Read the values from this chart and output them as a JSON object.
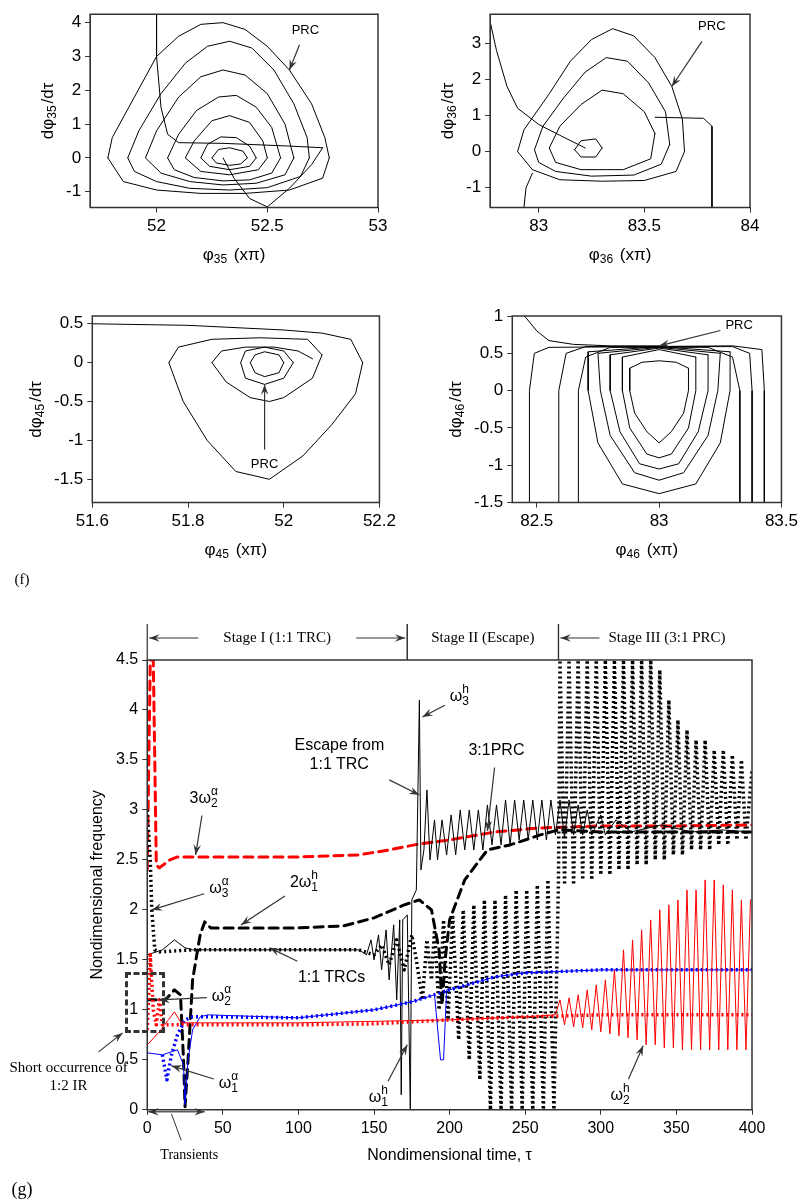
{
  "chart_data": [
    {
      "type": "line",
      "xlabel": "φ$_{35}$ (xπ)",
      "ylabel": "dφ$_{35}$/dτ",
      "xlim": [
        51.7,
        53
      ],
      "ylim": [
        -1.47,
        4.25
      ],
      "xticks": [
        52,
        52.5,
        53
      ],
      "yticks": [
        -1,
        0,
        1,
        2,
        3,
        4
      ],
      "grid": false,
      "legend": false,
      "marker": "none",
      "line_style": "solid",
      "series": [
        {
          "color": "#000000",
          "x": [
            51.78,
            51.8,
            51.9,
            52.0,
            52.1,
            52.2,
            52.3,
            52.4,
            52.5,
            52.6,
            52.7,
            52.76,
            52.78
          ],
          "values": [
            0,
            0.6,
            1.8,
            3.0,
            3.6,
            3.95,
            4.0,
            3.8,
            3.3,
            2.6,
            1.6,
            0.6,
            0
          ]
        },
        {
          "color": "#000000",
          "x": [
            51.78,
            51.85,
            52.0,
            52.2,
            52.4,
            52.6,
            52.75,
            52.78
          ],
          "values": [
            0,
            -0.7,
            -0.95,
            -1.05,
            -1.05,
            -0.95,
            -0.6,
            0
          ]
        },
        {
          "color": "#000000",
          "x": [
            51.87,
            51.92,
            52.02,
            52.13,
            52.23,
            52.33,
            52.43,
            52.53,
            52.62,
            52.68,
            52.69
          ],
          "values": [
            0,
            0.8,
            1.9,
            2.8,
            3.3,
            3.45,
            3.25,
            2.6,
            1.6,
            0.6,
            0
          ]
        },
        {
          "color": "#000000",
          "x": [
            51.87,
            51.9,
            52.0,
            52.15,
            52.33,
            52.5,
            52.65,
            52.69
          ],
          "values": [
            0,
            -0.4,
            -0.7,
            -0.9,
            -0.95,
            -0.88,
            -0.55,
            0
          ]
        },
        {
          "color": "#000000",
          "x": [
            51.95,
            52.0,
            52.1,
            52.2,
            52.3,
            52.4,
            52.5,
            52.58,
            52.62
          ],
          "values": [
            0,
            0.8,
            1.8,
            2.4,
            2.6,
            2.45,
            1.9,
            1.0,
            0
          ]
        },
        {
          "color": "#000000",
          "x": [
            51.95,
            52.02,
            52.15,
            52.3,
            52.45,
            52.58,
            52.62
          ],
          "values": [
            0,
            -0.45,
            -0.7,
            -0.8,
            -0.75,
            -0.5,
            0
          ]
        },
        {
          "color": "#000000",
          "x": [
            52.05,
            52.1,
            52.18,
            52.28,
            52.36,
            52.45,
            52.52,
            52.56
          ],
          "values": [
            0,
            0.7,
            1.4,
            1.8,
            1.85,
            1.5,
            0.9,
            0
          ]
        },
        {
          "color": "#000000",
          "x": [
            52.05,
            52.08,
            52.17,
            52.3,
            52.42,
            52.52,
            52.56
          ],
          "values": [
            0,
            -0.35,
            -0.58,
            -0.68,
            -0.65,
            -0.45,
            0
          ]
        },
        {
          "color": "#000000",
          "x": [
            52.13,
            52.17,
            52.25,
            52.33,
            52.42,
            52.48,
            52.5
          ],
          "values": [
            0,
            0.5,
            1.1,
            1.25,
            1.05,
            0.5,
            0
          ]
        },
        {
          "color": "#000000",
          "x": [
            52.13,
            52.2,
            52.33,
            52.46,
            52.5
          ],
          "values": [
            0,
            -0.4,
            -0.5,
            -0.35,
            0
          ]
        },
        {
          "color": "#000000",
          "x": [
            52.2,
            52.23,
            52.29,
            52.36,
            52.42,
            52.45
          ],
          "values": [
            0,
            0.4,
            0.62,
            0.6,
            0.35,
            0
          ]
        },
        {
          "color": "#000000",
          "x": [
            52.2,
            52.24,
            52.33,
            52.42,
            52.45
          ],
          "values": [
            0,
            -0.25,
            -0.35,
            -0.25,
            0
          ]
        },
        {
          "color": "#000000",
          "x": [
            52.25,
            52.28,
            52.33,
            52.39,
            52.41
          ],
          "values": [
            0,
            0.25,
            0.3,
            0.2,
            0
          ]
        },
        {
          "color": "#000000",
          "x": [
            52.25,
            52.27,
            52.33,
            52.38,
            52.41
          ],
          "values": [
            0,
            -0.15,
            -0.22,
            -0.18,
            0
          ]
        },
        {
          "color": "#000000",
          "x": [
            52.0,
            52.0,
            52.02,
            52.05,
            52.1,
            52.3,
            52.6,
            52.75
          ],
          "values": [
            4.25,
            3.0,
            1.5,
            0.7,
            0.45,
            0.43,
            0.35,
            0.3
          ]
        },
        {
          "color": "#000000",
          "x": [
            52.5,
            52.6,
            52.7,
            52.75
          ],
          "values": [
            -1.45,
            -0.9,
            -0.2,
            0.3
          ]
        },
        {
          "color": "#000000",
          "x": [
            52.3,
            52.35,
            52.42,
            52.5
          ],
          "values": [
            0,
            -0.6,
            -1.2,
            -1.45
          ]
        }
      ],
      "annotations": [
        {
          "text": "PRC",
          "x": 52.6,
          "y": 2.6
        }
      ]
    },
    {
      "type": "line",
      "xlabel": "φ$_{36}$ (xπ)",
      "ylabel": "dφ$_{36}$/dτ",
      "xlim": [
        82.77,
        84
      ],
      "ylim": [
        -1.55,
        3.8
      ],
      "xticks": [
        83,
        83.5,
        84
      ],
      "yticks": [
        -1,
        0,
        1,
        2,
        3
      ],
      "grid": false,
      "legend": false,
      "marker": "none",
      "line_style": "solid",
      "series": [
        {
          "color": "#000000",
          "x": [
            82.9,
            82.93,
            83.05,
            83.15,
            83.25,
            83.35,
            83.45,
            83.55,
            83.63,
            83.68,
            83.69
          ],
          "values": [
            0,
            0.6,
            1.6,
            2.5,
            3.1,
            3.4,
            3.2,
            2.6,
            1.8,
            0.9,
            0
          ]
        },
        {
          "color": "#000000",
          "x": [
            82.9,
            82.97,
            83.1,
            83.3,
            83.5,
            83.65,
            83.69
          ],
          "values": [
            0,
            -0.5,
            -0.78,
            -0.82,
            -0.8,
            -0.55,
            0
          ]
        },
        {
          "color": "#000000",
          "x": [
            82.98,
            83.02,
            83.12,
            83.22,
            83.32,
            83.42,
            83.52,
            83.6,
            83.62
          ],
          "values": [
            0.05,
            0.7,
            1.5,
            2.2,
            2.6,
            2.5,
            1.9,
            1.1,
            0.2
          ]
        },
        {
          "color": "#000000",
          "x": [
            82.98,
            83.0,
            83.08,
            83.25,
            83.45,
            83.58,
            83.62
          ],
          "values": [
            0.05,
            -0.3,
            -0.55,
            -0.68,
            -0.65,
            -0.35,
            0.2
          ]
        },
        {
          "color": "#000000",
          "x": [
            83.05,
            83.1,
            83.2,
            83.3,
            83.4,
            83.5,
            83.55
          ],
          "values": [
            0.1,
            0.7,
            1.3,
            1.7,
            1.6,
            1.1,
            0.5
          ]
        },
        {
          "color": "#000000",
          "x": [
            83.05,
            83.08,
            83.2,
            83.4,
            83.53,
            83.55
          ],
          "values": [
            0.1,
            -0.3,
            -0.5,
            -0.5,
            -0.2,
            0.5
          ]
        },
        {
          "color": "#000000",
          "x": [
            83.17,
            83.2,
            83.27,
            83.3
          ],
          "values": [
            0.05,
            0.3,
            0.35,
            0.1
          ]
        },
        {
          "color": "#000000",
          "x": [
            83.17,
            83.2,
            83.27,
            83.3
          ],
          "values": [
            0.05,
            -0.15,
            -0.15,
            0.1
          ]
        },
        {
          "color": "#000000",
          "x": [
            82.77,
            82.8,
            82.85,
            82.9,
            83.0,
            83.1,
            83.22
          ],
          "values": [
            3.6,
            2.8,
            1.8,
            1.2,
            0.75,
            0.45,
            0.1
          ]
        },
        {
          "color": "#000000",
          "x": [
            83.55,
            83.78,
            83.82,
            83.82
          ],
          "values": [
            0.95,
            0.92,
            0.7,
            -1.55
          ]
        },
        {
          "color": "#000000",
          "x": [
            82.93,
            82.94,
            82.97
          ],
          "values": [
            -1.55,
            -1.0,
            -0.6
          ]
        }
      ],
      "annotations": [
        {
          "text": "PRC",
          "x": 83.63,
          "y": 1.8
        }
      ]
    },
    {
      "type": "line",
      "xlabel": "φ$_{45}$ (xπ)",
      "ylabel": "dφ$_{45}$/dτ",
      "xlim": [
        51.6,
        52.2
      ],
      "ylim": [
        -1.8,
        0.6
      ],
      "xticks": [
        51.6,
        51.8,
        52,
        52.2
      ],
      "yticks": [
        -1.5,
        -1,
        -0.5,
        0,
        0.5
      ],
      "grid": false,
      "legend": false,
      "marker": "none",
      "line_style": "solid",
      "series": [
        {
          "color": "#000000",
          "x": [
            51.6,
            51.8,
            52.0,
            52.08,
            52.14,
            52.165
          ],
          "values": [
            0.5,
            0.48,
            0.42,
            0.38,
            0.3,
            0.0
          ]
        },
        {
          "color": "#000000",
          "x": [
            51.76,
            51.79,
            51.84,
            51.9,
            51.97,
            52.04,
            52.1,
            52.15,
            52.165
          ],
          "values": [
            0,
            -0.5,
            -1.0,
            -1.4,
            -1.5,
            -1.2,
            -0.8,
            -0.4,
            0.0
          ]
        },
        {
          "color": "#000000",
          "x": [
            51.76,
            51.78,
            51.85,
            51.95,
            52.05,
            52.08
          ],
          "values": [
            0,
            0.2,
            0.3,
            0.32,
            0.3,
            0.1
          ]
        },
        {
          "color": "#000000",
          "x": [
            51.85,
            51.88,
            51.93,
            51.97,
            52.0,
            52.06,
            52.08
          ],
          "values": [
            0,
            -0.25,
            -0.45,
            -0.5,
            -0.45,
            -0.2,
            0.1
          ]
        },
        {
          "color": "#000000",
          "x": [
            51.85,
            51.87,
            51.92,
            51.98,
            52.03,
            52.06
          ],
          "values": [
            0,
            0.15,
            0.2,
            0.2,
            0.15,
            0.05
          ]
        },
        {
          "color": "#000000",
          "x": [
            51.91,
            51.92,
            51.96,
            52.0,
            52.02
          ],
          "values": [
            0,
            0.15,
            0.2,
            0.15,
            0
          ]
        },
        {
          "color": "#000000",
          "x": [
            51.91,
            51.92,
            51.96,
            52.0,
            52.02
          ],
          "values": [
            0,
            -0.2,
            -0.28,
            -0.2,
            0
          ]
        },
        {
          "color": "#000000",
          "x": [
            51.93,
            51.94,
            51.96,
            51.99,
            52.0
          ],
          "values": [
            0,
            0.1,
            0.14,
            0.1,
            0
          ]
        },
        {
          "color": "#000000",
          "x": [
            51.93,
            51.94,
            51.96,
            51.99,
            52.0
          ],
          "values": [
            0,
            -0.13,
            -0.18,
            -0.13,
            0
          ]
        }
      ],
      "annotations": [
        {
          "text": "PRC",
          "x": 51.96,
          "y": -0.28
        },
        "(f)"
      ]
    },
    {
      "type": "line",
      "xlabel": "φ$_{46}$ (xπ)",
      "ylabel": "dφ$_{46}$/dτ",
      "xlim": [
        82.4,
        83.5
      ],
      "ylim": [
        -1.5,
        1
      ],
      "xticks": [
        82.5,
        83,
        83.5
      ],
      "yticks": [
        -1.5,
        -1,
        -0.5,
        0,
        0.5,
        1
      ],
      "grid": false,
      "legend": false,
      "marker": "none",
      "line_style": "solid",
      "series": [
        {
          "color": "#000000",
          "x": [
            82.88,
            82.93,
            83.0,
            83.07,
            83.12
          ],
          "values": [
            0.3,
            0.38,
            0.4,
            0.38,
            0.3
          ]
        },
        {
          "color": "#000000",
          "x": [
            82.88,
            82.88,
            82.9,
            82.95,
            83.0,
            83.05,
            83.1,
            83.12,
            83.12
          ],
          "values": [
            0.3,
            0,
            -0.3,
            -0.55,
            -0.7,
            -0.55,
            -0.3,
            0,
            0.3
          ]
        },
        {
          "color": "#000000",
          "x": [
            82.85,
            83.0,
            83.15
          ],
          "values": [
            0.45,
            0.55,
            0.45
          ]
        },
        {
          "color": "#000000",
          "x": [
            82.85,
            82.85,
            82.88,
            82.95,
            83.0,
            83.05,
            83.12,
            83.15,
            83.15
          ],
          "values": [
            0.45,
            0,
            -0.5,
            -0.85,
            -0.9,
            -0.85,
            -0.5,
            0,
            0.45
          ]
        },
        {
          "color": "#000000",
          "x": [
            82.8,
            83.0,
            83.2
          ],
          "values": [
            0.48,
            0.57,
            0.48
          ]
        },
        {
          "color": "#000000",
          "x": [
            82.8,
            82.8,
            82.84,
            82.92,
            83.0,
            83.08,
            83.16,
            83.2,
            83.2
          ],
          "values": [
            0.48,
            0,
            -0.55,
            -0.98,
            -1.05,
            -0.98,
            -0.55,
            0,
            0.48
          ]
        },
        {
          "color": "#000000",
          "x": [
            82.75,
            83.0,
            83.25
          ],
          "values": [
            0.5,
            0.58,
            0.5
          ]
        },
        {
          "color": "#000000",
          "x": [
            82.75,
            82.76,
            82.8,
            82.9,
            83.0,
            83.1,
            83.2,
            83.24,
            83.25
          ],
          "values": [
            0.5,
            0,
            -0.6,
            -1.1,
            -1.2,
            -1.1,
            -0.6,
            0,
            0.5
          ]
        },
        {
          "color": "#000000",
          "x": [
            82.71,
            83.0,
            83.29
          ],
          "values": [
            0.52,
            0.59,
            0.52
          ]
        },
        {
          "color": "#000000",
          "x": [
            82.71,
            82.71,
            82.75,
            82.85,
            83.0,
            83.15,
            83.25,
            83.29,
            83.29
          ],
          "values": [
            0.52,
            0,
            -0.7,
            -1.25,
            -1.38,
            -1.25,
            -0.7,
            0,
            0.52
          ]
        },
        {
          "color": "#000000",
          "x": [
            82.67,
            82.67,
            82.7,
            82.8,
            83.2,
            83.3,
            83.33,
            83.33
          ],
          "values": [
            -1.5,
            0,
            0.45,
            0.58,
            0.58,
            0.45,
            0,
            -1.5
          ]
        },
        {
          "color": "#000000",
          "x": [
            82.59,
            82.59,
            82.62,
            82.7,
            83.3,
            83.37,
            83.38,
            83.38
          ],
          "values": [
            -1.5,
            0,
            0.5,
            0.59,
            0.59,
            0.5,
            0,
            -1.5
          ]
        },
        {
          "color": "#000000",
          "x": [
            82.47,
            82.47,
            82.49,
            82.55,
            83.3,
            83.42,
            83.43,
            83.43
          ],
          "values": [
            -1.5,
            0,
            0.5,
            0.58,
            0.6,
            0.55,
            0,
            -1.5
          ]
        },
        {
          "color": "#000000",
          "x": [
            82.45,
            82.5,
            82.55,
            82.65,
            82.8,
            83.0
          ],
          "values": [
            1.0,
            0.8,
            0.67,
            0.62,
            0.6,
            0.6
          ]
        }
      ],
      "annotations": [
        {
          "text": "PRC",
          "x": 83.0,
          "y": 0.6
        }
      ]
    },
    {
      "type": "line",
      "xlabel": "Nondimensional time, τ",
      "ylabel": "Nondimensional frequency",
      "xlim": [
        0,
        400
      ],
      "ylim": [
        0,
        4.5
      ],
      "xticks": [
        0,
        50,
        100,
        150,
        200,
        250,
        300,
        350,
        400
      ],
      "yticks": [
        0,
        0.5,
        1,
        1.5,
        2,
        2.5,
        3,
        3.5,
        4,
        4.5
      ],
      "grid": false,
      "legend": false,
      "marker": "none",
      "series": [
        {
          "color": "#ff0000",
          "line_style": "dashed",
          "x": [
            0,
            2,
            4,
            6,
            8,
            15,
            20,
            50,
            100,
            140,
            160,
            180,
            200,
            230,
            260,
            300,
            350,
            400
          ],
          "values": [
            2.4,
            4.5,
            4.5,
            2.45,
            2.42,
            2.5,
            2.53,
            2.53,
            2.53,
            2.55,
            2.6,
            2.66,
            2.7,
            2.78,
            2.82,
            2.84,
            2.84,
            2.85
          ]
        },
        {
          "color": "#000000",
          "line_style": "dotted",
          "x": [
            0,
            2,
            3,
            5,
            8,
            30,
            100,
            140,
            150,
            155,
            160,
            165,
            170,
            175,
            178,
            182,
            185,
            188,
            190,
            193,
            196,
            199,
            202,
            206,
            209,
            213,
            216,
            220,
            223,
            227,
            230,
            234,
            237,
            241,
            244,
            248,
            251,
            255,
            258,
            262,
            265,
            269,
            272,
            273,
            276,
            279,
            282,
            285,
            288,
            291,
            294,
            297,
            300,
            303,
            306,
            309,
            312,
            315,
            318,
            321,
            324,
            327,
            330,
            333,
            336,
            339,
            342,
            345,
            348,
            351,
            354,
            357,
            360,
            363,
            366,
            369,
            372,
            375,
            378,
            381,
            384,
            387,
            390,
            393,
            396,
            400
          ],
          "values": [
            3.0,
            2.5,
            2.0,
            1.6,
            1.58,
            1.6,
            1.6,
            1.6,
            1.55,
            1.65,
            1.45,
            1.7,
            1.4,
            1.75,
            1.5,
            1.1,
            1.7,
            1.3,
            1.8,
            1.0,
            1.9,
            0.9,
            1.95,
            0.7,
            2.0,
            0.5,
            2.05,
            0.3,
            2.1,
            0.0,
            2.1,
            0.0,
            2.15,
            0.0,
            2.2,
            0.0,
            2.2,
            0.0,
            2.25,
            0.0,
            2.3,
            0.0,
            2.3,
            4.5,
            2.25,
            4.5,
            2.25,
            4.5,
            2.3,
            4.5,
            2.3,
            4.5,
            2.35,
            4.5,
            2.35,
            4.5,
            2.4,
            4.5,
            2.4,
            4.5,
            2.45,
            4.5,
            2.45,
            4.5,
            2.5,
            4.4,
            2.5,
            4.1,
            2.55,
            3.9,
            2.55,
            3.8,
            2.6,
            3.7,
            2.6,
            3.7,
            2.6,
            3.6,
            2.65,
            3.6,
            2.65,
            3.55,
            2.7,
            3.5,
            2.7,
            3.4
          ]
        },
        {
          "color": "#000000",
          "line_style": "dashed",
          "x": [
            0,
            12,
            18,
            22,
            24,
            25,
            27,
            30,
            35,
            38,
            42,
            50,
            100,
            130,
            150,
            170,
            180,
            188,
            193,
            195,
            197,
            200,
            210,
            225,
            240,
            260,
            272,
            300,
            400
          ],
          "values": [
            1.1,
            1.1,
            1.2,
            1.15,
            0.5,
            0.03,
            0.5,
            1.3,
            1.75,
            1.88,
            1.82,
            1.82,
            1.82,
            1.84,
            1.92,
            2.05,
            2.1,
            2.0,
            1.6,
            1.05,
            1.5,
            1.9,
            2.3,
            2.6,
            2.65,
            2.75,
            2.8,
            2.78,
            2.78
          ]
        },
        {
          "color": "#000000",
          "line_style": "solid",
          "x": [
            0,
            10,
            18,
            25,
            30,
            140,
            145,
            148,
            150,
            153,
            155,
            158,
            160,
            163,
            165,
            167,
            168,
            169,
            172,
            174,
            175,
            178,
            180,
            181,
            183,
            185,
            187,
            190,
            192,
            195,
            198,
            201,
            204,
            207,
            210,
            213,
            216,
            219,
            222,
            225,
            228,
            231,
            234,
            237,
            240,
            243,
            246,
            249,
            252,
            255,
            258,
            261,
            264,
            267,
            270,
            273,
            276,
            279,
            282,
            285,
            288,
            291,
            294,
            300,
            303,
            310,
            320,
            340,
            360,
            380,
            400
          ],
          "values": [
            1.55,
            1.6,
            1.7,
            1.62,
            1.6,
            1.6,
            1.55,
            1.7,
            1.5,
            1.75,
            1.4,
            1.8,
            1.3,
            1.85,
            1.1,
            1.9,
            0.15,
            1.9,
            1.95,
            0.0,
            2.1,
            2.2,
            4.1,
            2.4,
            2.6,
            3.2,
            2.5,
            2.9,
            2.5,
            2.9,
            2.55,
            2.95,
            2.55,
            3.0,
            2.6,
            3.0,
            2.6,
            3.0,
            2.6,
            3.05,
            2.65,
            3.05,
            2.65,
            3.1,
            2.65,
            3.1,
            2.7,
            3.1,
            2.7,
            3.1,
            2.7,
            3.1,
            2.7,
            3.1,
            2.75,
            3.1,
            2.72,
            3.1,
            2.75,
            3.05,
            2.75,
            3.0,
            2.75,
            2.95,
            2.75,
            2.9,
            2.78,
            2.85,
            2.78,
            2.8,
            2.78
          ]
        },
        {
          "color": "#ff0000",
          "line_style": "dotted",
          "x": [
            0,
            2,
            4,
            6,
            8,
            10,
            15,
            50,
            100,
            150,
            200,
            250,
            300,
            400
          ],
          "values": [
            0.8,
            1.55,
            1.0,
            0.85,
            1.1,
            0.85,
            0.85,
            0.85,
            0.85,
            0.86,
            0.9,
            0.93,
            0.95,
            0.95
          ]
        },
        {
          "color": "#0000ff",
          "line_style": "dotted",
          "x": [
            10,
            13,
            16,
            20,
            25,
            30,
            50,
            100,
            150,
            175,
            200,
            230,
            250,
            300,
            400
          ],
          "values": [
            0.55,
            0.3,
            0.55,
            0.75,
            0.9,
            0.93,
            0.93,
            0.92,
            1.0,
            1.08,
            1.2,
            1.33,
            1.37,
            1.4,
            1.4
          ]
        },
        {
          "color": "#0000ff",
          "line_style": "solid",
          "x": [
            0,
            10,
            20,
            24,
            25,
            27,
            30,
            35,
            40,
            100,
            150,
            175,
            190,
            194,
            196,
            198,
            200,
            230,
            250,
            300,
            400
          ],
          "values": [
            0.57,
            0.55,
            0.6,
            0.45,
            0.05,
            0.5,
            0.8,
            0.93,
            0.95,
            0.92,
            1.0,
            1.08,
            1.15,
            0.5,
            0.5,
            1.2,
            1.2,
            1.33,
            1.37,
            1.4,
            1.4
          ]
        },
        {
          "color": "#ff0000",
          "line_style": "solid",
          "x": [
            0,
            8,
            14,
            18,
            22,
            26,
            100,
            200,
            250,
            270,
            273,
            276,
            279,
            282,
            285,
            288,
            291,
            294,
            297,
            300,
            303,
            306,
            309,
            312,
            315,
            318,
            321,
            324,
            327,
            330,
            333,
            336,
            339,
            342,
            345,
            348,
            351,
            354,
            357,
            360,
            363,
            366,
            369,
            372,
            375,
            378,
            381,
            384,
            387,
            390,
            393,
            396,
            399
          ],
          "values": [
            0.65,
            0.78,
            0.9,
            0.98,
            0.88,
            0.87,
            0.87,
            0.9,
            0.93,
            0.95,
            1.1,
            0.85,
            1.12,
            0.83,
            1.15,
            0.82,
            1.2,
            0.8,
            1.25,
            0.78,
            1.3,
            0.76,
            1.4,
            0.74,
            1.6,
            0.72,
            1.7,
            0.7,
            1.8,
            0.65,
            1.9,
            0.65,
            2.0,
            0.62,
            2.05,
            0.62,
            2.1,
            0.6,
            2.2,
            0.6,
            2.2,
            0.6,
            2.3,
            0.6,
            2.3,
            0.6,
            2.25,
            0.6,
            2.2,
            0.6,
            2.1,
            0.6,
            2.1
          ]
        }
      ],
      "annotations": [
        {
          "text": "3ω$_{2}$$^{α}$",
          "x": 32,
          "y": 2.55
        },
        {
          "text": "ω$_{3}$$^{α}$",
          "x": 3,
          "y": 2.0
        },
        {
          "text": "2ω$_{1}$$^{h}$",
          "x": 62,
          "y": 1.85
        },
        {
          "text": "1:1 TRCs",
          "x": 81,
          "y": 1.62
        },
        {
          "text": "ω$_{2}$$^{α}$",
          "x": 8,
          "y": 1.1
        },
        {
          "text": "ω$_{1}$$^{α}$",
          "x": 16,
          "y": 0.44
        },
        {
          "text": "Escape from 1:1 TRC",
          "x": 180,
          "y": 3.15
        },
        {
          "text": "ω$_{3}$$^{h}$",
          "x": 182,
          "y": 3.93
        },
        {
          "text": "3:1PRC",
          "x": 225,
          "y": 2.79
        },
        {
          "text": "ω$_{1}$$^{h}$",
          "x": 172,
          "y": 0.65
        },
        {
          "text": "ω$_{2}$$^{h}$",
          "x": 328,
          "y": 0.64
        },
        "Transients",
        "Short occurrence of 1:2 IR",
        "(g)",
        "Stage I (1:1 TRC)",
        "Stage II (Escape)",
        "Stage III (3:1 PRC)"
      ]
    }
  ]
}
